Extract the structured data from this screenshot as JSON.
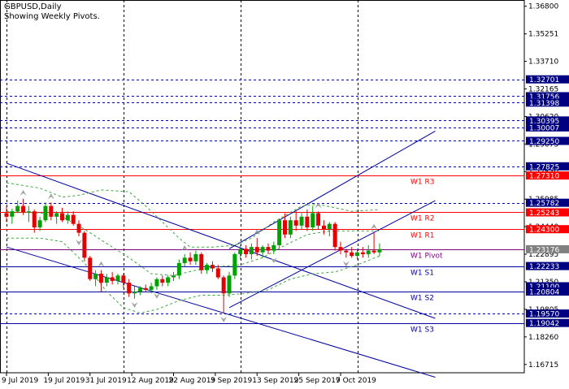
{
  "header": {
    "symbol_line": "GBPUSD,Daily",
    "subtitle": "Showing Weekly Pivots."
  },
  "colors": {
    "background": "#ffffff",
    "bull": "#00a000",
    "bear": "#e00000",
    "pivot_line": "#ff0000",
    "trend_line": "#0000a0",
    "bollinger": "#3aa83a",
    "grid": "#000000",
    "tag_navy": "#000080",
    "tag_red": "#ff0000",
    "tag_gray": "#808080",
    "pivot_text": "#800080",
    "level_text": "#ffffff"
  },
  "chart_data": {
    "type": "candlestick",
    "title": "GBPUSD,Daily",
    "ylim": [
      1.1625,
      1.3715
    ],
    "y_ticks": [
      "1.36800",
      "1.35251",
      "1.33710",
      "1.32165",
      "1.30620",
      "1.29075",
      "1.27530",
      "1.25985",
      "1.24440",
      "1.22895",
      "1.21350",
      "1.19805",
      "1.18260",
      "1.16715"
    ],
    "x_ticks": [
      "9 Jul 2019",
      "19 Jul 2019",
      "31 Jul 2019",
      "12 Aug 2019",
      "22 Aug 2019",
      "3 Sep 2019",
      "13 Sep 2019",
      "25 Sep 2019",
      "7 Oct 2019"
    ],
    "grid": "dashed vertical and horizontal",
    "candles": [
      {
        "o": 1.252,
        "h": 1.256,
        "l": 1.247,
        "c": 1.25
      },
      {
        "o": 1.25,
        "h": 1.2545,
        "l": 1.246,
        "c": 1.253
      },
      {
        "o": 1.253,
        "h": 1.259,
        "l": 1.252,
        "c": 1.256
      },
      {
        "o": 1.256,
        "h": 1.26,
        "l": 1.251,
        "c": 1.2525
      },
      {
        "o": 1.2525,
        "h": 1.256,
        "l": 1.247,
        "c": 1.253
      },
      {
        "o": 1.253,
        "h": 1.254,
        "l": 1.241,
        "c": 1.244
      },
      {
        "o": 1.244,
        "h": 1.25,
        "l": 1.242,
        "c": 1.248
      },
      {
        "o": 1.248,
        "h": 1.258,
        "l": 1.247,
        "c": 1.256
      },
      {
        "o": 1.256,
        "h": 1.258,
        "l": 1.248,
        "c": 1.25
      },
      {
        "o": 1.25,
        "h": 1.253,
        "l": 1.246,
        "c": 1.252
      },
      {
        "o": 1.252,
        "h": 1.255,
        "l": 1.247,
        "c": 1.248
      },
      {
        "o": 1.248,
        "h": 1.253,
        "l": 1.246,
        "c": 1.251
      },
      {
        "o": 1.251,
        "h": 1.253,
        "l": 1.245,
        "c": 1.246
      },
      {
        "o": 1.246,
        "h": 1.248,
        "l": 1.239,
        "c": 1.241
      },
      {
        "o": 1.241,
        "h": 1.242,
        "l": 1.225,
        "c": 1.227
      },
      {
        "o": 1.227,
        "h": 1.228,
        "l": 1.214,
        "c": 1.215
      },
      {
        "o": 1.215,
        "h": 1.22,
        "l": 1.211,
        "c": 1.218
      },
      {
        "o": 1.218,
        "h": 1.22,
        "l": 1.208,
        "c": 1.213
      },
      {
        "o": 1.213,
        "h": 1.218,
        "l": 1.211,
        "c": 1.216
      },
      {
        "o": 1.216,
        "h": 1.219,
        "l": 1.212,
        "c": 1.214
      },
      {
        "o": 1.214,
        "h": 1.218,
        "l": 1.212,
        "c": 1.217
      },
      {
        "o": 1.217,
        "h": 1.218,
        "l": 1.21,
        "c": 1.213
      },
      {
        "o": 1.213,
        "h": 1.215,
        "l": 1.205,
        "c": 1.207
      },
      {
        "o": 1.207,
        "h": 1.211,
        "l": 1.204,
        "c": 1.208
      },
      {
        "o": 1.208,
        "h": 1.211,
        "l": 1.206,
        "c": 1.21
      },
      {
        "o": 1.21,
        "h": 1.212,
        "l": 1.208,
        "c": 1.209
      },
      {
        "o": 1.209,
        "h": 1.213,
        "l": 1.207,
        "c": 1.211
      },
      {
        "o": 1.211,
        "h": 1.216,
        "l": 1.209,
        "c": 1.215
      },
      {
        "o": 1.215,
        "h": 1.217,
        "l": 1.211,
        "c": 1.213
      },
      {
        "o": 1.213,
        "h": 1.217,
        "l": 1.211,
        "c": 1.216
      },
      {
        "o": 1.216,
        "h": 1.219,
        "l": 1.214,
        "c": 1.217
      },
      {
        "o": 1.217,
        "h": 1.226,
        "l": 1.215,
        "c": 1.224
      },
      {
        "o": 1.224,
        "h": 1.229,
        "l": 1.222,
        "c": 1.227
      },
      {
        "o": 1.227,
        "h": 1.23,
        "l": 1.223,
        "c": 1.225
      },
      {
        "o": 1.225,
        "h": 1.231,
        "l": 1.223,
        "c": 1.229
      },
      {
        "o": 1.229,
        "h": 1.23,
        "l": 1.218,
        "c": 1.22
      },
      {
        "o": 1.22,
        "h": 1.224,
        "l": 1.218,
        "c": 1.223
      },
      {
        "o": 1.223,
        "h": 1.225,
        "l": 1.219,
        "c": 1.221
      },
      {
        "o": 1.221,
        "h": 1.223,
        "l": 1.215,
        "c": 1.216
      },
      {
        "o": 1.216,
        "h": 1.217,
        "l": 1.1958,
        "c": 1.207
      },
      {
        "o": 1.207,
        "h": 1.219,
        "l": 1.205,
        "c": 1.217
      },
      {
        "o": 1.217,
        "h": 1.23,
        "l": 1.215,
        "c": 1.229
      },
      {
        "o": 1.229,
        "h": 1.234,
        "l": 1.226,
        "c": 1.232
      },
      {
        "o": 1.232,
        "h": 1.234,
        "l": 1.227,
        "c": 1.229
      },
      {
        "o": 1.229,
        "h": 1.235,
        "l": 1.226,
        "c": 1.233
      },
      {
        "o": 1.233,
        "h": 1.238,
        "l": 1.228,
        "c": 1.23
      },
      {
        "o": 1.23,
        "h": 1.234,
        "l": 1.227,
        "c": 1.233
      },
      {
        "o": 1.233,
        "h": 1.235,
        "l": 1.229,
        "c": 1.231
      },
      {
        "o": 1.231,
        "h": 1.236,
        "l": 1.229,
        "c": 1.234
      },
      {
        "o": 1.234,
        "h": 1.249,
        "l": 1.232,
        "c": 1.248
      },
      {
        "o": 1.248,
        "h": 1.252,
        "l": 1.238,
        "c": 1.24
      },
      {
        "o": 1.24,
        "h": 1.25,
        "l": 1.238,
        "c": 1.248
      },
      {
        "o": 1.248,
        "h": 1.253,
        "l": 1.242,
        "c": 1.245
      },
      {
        "o": 1.245,
        "h": 1.252,
        "l": 1.243,
        "c": 1.25
      },
      {
        "o": 1.25,
        "h": 1.254,
        "l": 1.242,
        "c": 1.244
      },
      {
        "o": 1.244,
        "h": 1.256,
        "l": 1.242,
        "c": 1.252
      },
      {
        "o": 1.252,
        "h": 1.253,
        "l": 1.243,
        "c": 1.245
      },
      {
        "o": 1.245,
        "h": 1.248,
        "l": 1.24,
        "c": 1.243
      },
      {
        "o": 1.243,
        "h": 1.247,
        "l": 1.239,
        "c": 1.246
      },
      {
        "o": 1.246,
        "h": 1.247,
        "l": 1.231,
        "c": 1.233
      },
      {
        "o": 1.233,
        "h": 1.236,
        "l": 1.229,
        "c": 1.231
      },
      {
        "o": 1.231,
        "h": 1.232,
        "l": 1.227,
        "c": 1.23
      },
      {
        "o": 1.23,
        "h": 1.233,
        "l": 1.227,
        "c": 1.228
      },
      {
        "o": 1.228,
        "h": 1.232,
        "l": 1.226,
        "c": 1.23
      },
      {
        "o": 1.23,
        "h": 1.233,
        "l": 1.227,
        "c": 1.229
      },
      {
        "o": 1.229,
        "h": 1.234,
        "l": 1.227,
        "c": 1.231
      },
      {
        "o": 1.231,
        "h": 1.241,
        "l": 1.229,
        "c": 1.23
      },
      {
        "o": 1.23,
        "h": 1.235,
        "l": 1.228,
        "c": 1.2318
      }
    ],
    "bollinger_upper": [
      {
        "i": 0,
        "v": 1.269
      },
      {
        "i": 6,
        "v": 1.266
      },
      {
        "i": 10,
        "v": 1.261
      },
      {
        "i": 13,
        "v": 1.262
      },
      {
        "i": 17,
        "v": 1.265
      },
      {
        "i": 22,
        "v": 1.264
      },
      {
        "i": 25,
        "v": 1.256
      },
      {
        "i": 28,
        "v": 1.247
      },
      {
        "i": 31,
        "v": 1.238
      },
      {
        "i": 33,
        "v": 1.233
      },
      {
        "i": 37,
        "v": 1.233
      },
      {
        "i": 41,
        "v": 1.234
      },
      {
        "i": 44,
        "v": 1.238
      },
      {
        "i": 48,
        "v": 1.247
      },
      {
        "i": 53,
        "v": 1.256
      },
      {
        "i": 56,
        "v": 1.257
      },
      {
        "i": 59,
        "v": 1.255
      },
      {
        "i": 62,
        "v": 1.253
      },
      {
        "i": 67,
        "v": 1.254
      }
    ],
    "bollinger_middle": [
      {
        "i": 0,
        "v": 1.253
      },
      {
        "i": 6,
        "v": 1.252
      },
      {
        "i": 10,
        "v": 1.25
      },
      {
        "i": 14,
        "v": 1.243
      },
      {
        "i": 18,
        "v": 1.235
      },
      {
        "i": 22,
        "v": 1.227
      },
      {
        "i": 26,
        "v": 1.218
      },
      {
        "i": 30,
        "v": 1.217
      },
      {
        "i": 34,
        "v": 1.22
      },
      {
        "i": 38,
        "v": 1.222
      },
      {
        "i": 42,
        "v": 1.223
      },
      {
        "i": 46,
        "v": 1.227
      },
      {
        "i": 50,
        "v": 1.234
      },
      {
        "i": 54,
        "v": 1.24
      },
      {
        "i": 58,
        "v": 1.242
      },
      {
        "i": 62,
        "v": 1.242
      },
      {
        "i": 67,
        "v": 1.242
      }
    ],
    "bollinger_lower": [
      {
        "i": 0,
        "v": 1.238
      },
      {
        "i": 6,
        "v": 1.238
      },
      {
        "i": 10,
        "v": 1.236
      },
      {
        "i": 14,
        "v": 1.224
      },
      {
        "i": 18,
        "v": 1.208
      },
      {
        "i": 21,
        "v": 1.199
      },
      {
        "i": 24,
        "v": 1.196
      },
      {
        "i": 27,
        "v": 1.198
      },
      {
        "i": 31,
        "v": 1.203
      },
      {
        "i": 35,
        "v": 1.206
      },
      {
        "i": 39,
        "v": 1.206
      },
      {
        "i": 43,
        "v": 1.207
      },
      {
        "i": 47,
        "v": 1.209
      },
      {
        "i": 51,
        "v": 1.215
      },
      {
        "i": 55,
        "v": 1.218
      },
      {
        "i": 59,
        "v": 1.219
      },
      {
        "i": 63,
        "v": 1.223
      },
      {
        "i": 67,
        "v": 1.228
      }
    ],
    "fractals": [
      {
        "i": 3,
        "dir": "up"
      },
      {
        "i": 8,
        "dir": "up"
      },
      {
        "i": 13,
        "dir": "down"
      },
      {
        "i": 17,
        "dir": "up"
      },
      {
        "i": 23,
        "dir": "down"
      },
      {
        "i": 27,
        "dir": "down"
      },
      {
        "i": 32,
        "dir": "up"
      },
      {
        "i": 39,
        "dir": "down"
      },
      {
        "i": 45,
        "dir": "up"
      },
      {
        "i": 48,
        "dir": "down"
      },
      {
        "i": 56,
        "dir": "up"
      },
      {
        "i": 61,
        "dir": "down"
      },
      {
        "i": 66,
        "dir": "up"
      }
    ],
    "trend_lines": [
      {
        "x0": 0,
        "y0": 1.28,
        "x1": 77,
        "y1": 1.193
      },
      {
        "x0": 0,
        "y0": 1.233,
        "x1": 77,
        "y1": 1.16
      },
      {
        "x0": 40,
        "y0": 1.199,
        "x1": 77,
        "y1": 1.259
      },
      {
        "x0": 40,
        "y0": 1.232,
        "x1": 77,
        "y1": 1.298
      }
    ],
    "pivot_levels": [
      {
        "label": "W1 R3",
        "value": 1.2731
      },
      {
        "label": "W1 R2",
        "value": 1.25243
      },
      {
        "label": "W1 R1",
        "value": 1.243
      },
      {
        "label": "W1 Pivot",
        "value": 1.23176
      },
      {
        "label": "W1 S1",
        "value": 1.22233
      },
      {
        "label": "W1 S2",
        "value": 1.20804
      },
      {
        "label": "W1 S3",
        "value": 1.19042
      }
    ],
    "dashed_levels": [
      1.32701,
      1.31756,
      1.31398,
      1.30395,
      1.30007,
      1.2925,
      1.27825,
      1.25782,
      1.22233,
      1.20804,
      1.1957
    ],
    "price_tags": [
      {
        "text": "1.32701",
        "value": 1.32701,
        "color": "navy"
      },
      {
        "text": "1.31756",
        "value": 1.31756,
        "color": "navy"
      },
      {
        "text": "1.31398",
        "value": 1.31398,
        "color": "navy"
      },
      {
        "text": "1.30395",
        "value": 1.30395,
        "color": "navy"
      },
      {
        "text": "1.30007",
        "value": 1.30007,
        "color": "navy"
      },
      {
        "text": "1.29250",
        "value": 1.2925,
        "color": "navy"
      },
      {
        "text": "1.27825",
        "value": 1.27825,
        "color": "navy"
      },
      {
        "text": "1.27310",
        "value": 1.2731,
        "color": "red"
      },
      {
        "text": "1.25782",
        "value": 1.25782,
        "color": "navy"
      },
      {
        "text": "1.25243",
        "value": 1.25243,
        "color": "red"
      },
      {
        "text": "1.24300",
        "value": 1.243,
        "color": "red"
      },
      {
        "text": "1.23176",
        "value": 1.23176,
        "color": "gray"
      },
      {
        "text": "1.22233",
        "value": 1.22233,
        "color": "navy"
      },
      {
        "text": "1.21100",
        "value": 1.211,
        "color": "navy"
      },
      {
        "text": "1.20804",
        "value": 1.20804,
        "color": "navy"
      },
      {
        "text": "1.19570",
        "value": 1.1957,
        "color": "navy"
      },
      {
        "text": "1.19042",
        "value": 1.19042,
        "color": "navy"
      }
    ],
    "vertical_gridlines_at_candle": [
      0,
      21,
      42,
      63
    ]
  }
}
